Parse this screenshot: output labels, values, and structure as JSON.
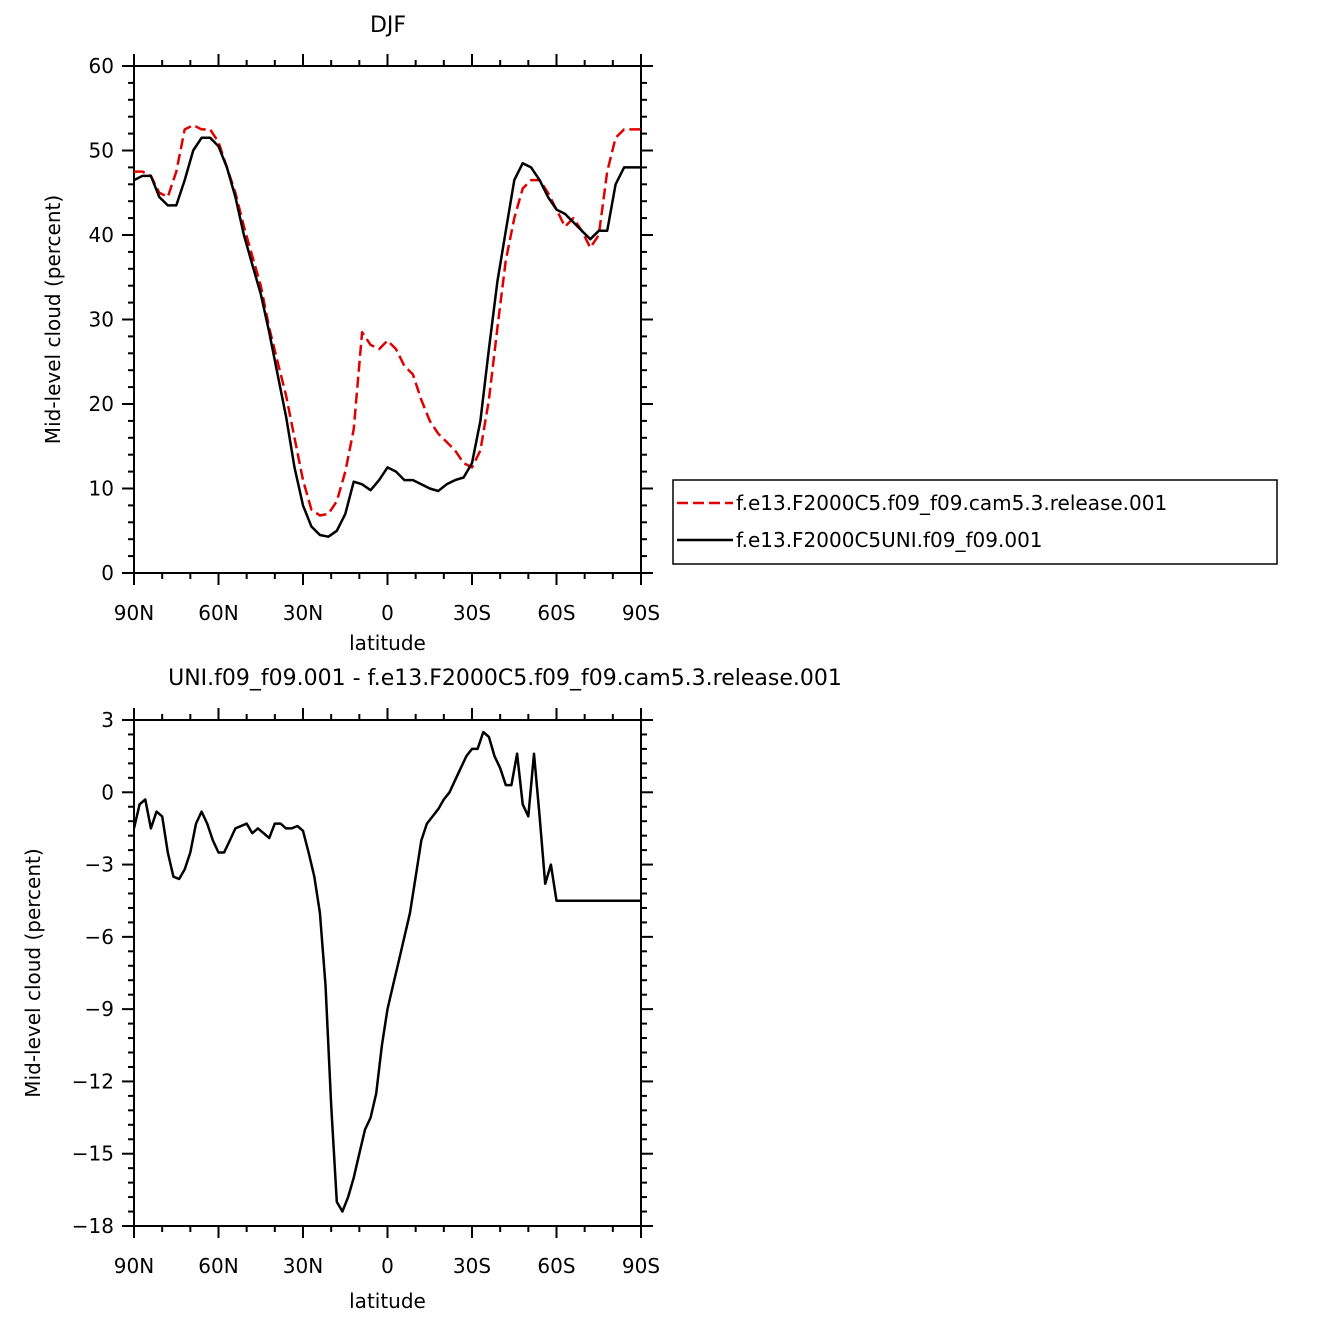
{
  "chart_data": [
    {
      "type": "line",
      "title": "DJF",
      "xlabel": "latitude",
      "ylabel": "Mid-level cloud (percent)",
      "xlim": [
        90,
        -90
      ],
      "ylim": [
        0,
        60
      ],
      "xticks": [
        90,
        60,
        30,
        0,
        -30,
        -60,
        -90
      ],
      "xtick_labels": [
        "90N",
        "60N",
        "30N",
        "0",
        "30S",
        "60S",
        "90S"
      ],
      "yticks": [
        0,
        10,
        20,
        30,
        40,
        50,
        60
      ],
      "ytick_labels": [
        "0",
        "10",
        "20",
        "30",
        "40",
        "50",
        "60"
      ],
      "grid": false,
      "legend_position": "right",
      "series": [
        {
          "name": "f.e13.F2000C5.f09_f09.cam5.3.release.001",
          "color": "#e00000",
          "dash": "dashed",
          "x": [
            90,
            87,
            84,
            81,
            78,
            75,
            72,
            69,
            66,
            63,
            60,
            57,
            54,
            51,
            48,
            45,
            42,
            39,
            36,
            33,
            30,
            27,
            24,
            21,
            18,
            15,
            12,
            9,
            6,
            3,
            0,
            -3,
            -6,
            -9,
            -12,
            -15,
            -18,
            -21,
            -24,
            -27,
            -30,
            -33,
            -36,
            -39,
            -42,
            -45,
            -48,
            -51,
            -54,
            -57,
            -60,
            -63,
            -66,
            -69,
            -72,
            -75,
            -78,
            -81,
            -84,
            -87,
            -90
          ],
          "y": [
            47.5,
            47.5,
            47,
            45,
            44.5,
            47.5,
            52.5,
            53,
            52.5,
            52.5,
            51,
            48,
            45,
            41,
            37.5,
            34,
            29,
            25,
            21,
            16,
            11,
            7.5,
            6.8,
            7,
            8.5,
            12,
            17,
            28.5,
            27,
            26.5,
            27.5,
            26.5,
            24.5,
            23.5,
            20.5,
            18,
            16.5,
            15.5,
            14.5,
            13,
            12.5,
            14.5,
            20.5,
            29,
            37,
            42,
            45.5,
            46.5,
            46.5,
            45,
            43,
            41,
            42,
            40.5,
            38.5,
            40,
            47.5,
            51.5,
            52.5,
            52.5,
            52.5
          ]
        },
        {
          "name": "f.e13.F2000C5UNI.f09_f09.001",
          "color": "#000000",
          "dash": "solid",
          "x": [
            90,
            87,
            84,
            81,
            78,
            75,
            72,
            69,
            66,
            63,
            60,
            57,
            54,
            51,
            48,
            45,
            42,
            39,
            36,
            33,
            30,
            27,
            24,
            21,
            18,
            15,
            12,
            9,
            6,
            3,
            0,
            -3,
            -6,
            -9,
            -12,
            -15,
            -18,
            -21,
            -24,
            -27,
            -30,
            -33,
            -36,
            -39,
            -42,
            -45,
            -48,
            -51,
            -54,
            -57,
            -60,
            -63,
            -66,
            -69,
            -72,
            -75,
            -78,
            -81,
            -84,
            -87,
            -90
          ],
          "y": [
            46.5,
            47,
            47,
            44.5,
            43.5,
            43.5,
            46.5,
            50,
            51.5,
            51.5,
            50.5,
            48,
            44.5,
            40,
            36.5,
            33,
            28.5,
            23.5,
            18.5,
            12.5,
            8,
            5.5,
            4.5,
            4.3,
            5,
            7,
            10.8,
            10.5,
            9.8,
            11,
            12.5,
            12,
            11,
            11,
            10.5,
            10,
            9.7,
            10.5,
            11,
            11.3,
            13,
            18,
            26.5,
            34.5,
            40.5,
            46.5,
            48.5,
            48,
            46.5,
            44.5,
            43,
            42.5,
            41.5,
            40.5,
            39.5,
            40.5,
            40.5,
            46,
            48,
            48,
            48
          ]
        }
      ]
    },
    {
      "type": "line",
      "title": "UNI.f09_f09.001 - f.e13.F2000C5.f09_f09.cam5.3.release.001",
      "xlabel": "latitude",
      "ylabel": "Mid-level cloud (percent)",
      "xlim": [
        90,
        -90
      ],
      "ylim": [
        -18,
        3
      ],
      "xticks": [
        90,
        60,
        30,
        0,
        -30,
        -60,
        -90
      ],
      "xtick_labels": [
        "90N",
        "60N",
        "30N",
        "0",
        "30S",
        "60S",
        "90S"
      ],
      "yticks": [
        3,
        0,
        -3,
        -6,
        -9,
        -12,
        -15,
        -18
      ],
      "ytick_labels": [
        "3",
        "0",
        "−3",
        "−6",
        "−9",
        "−12",
        "−15",
        "−18"
      ],
      "grid": false,
      "series": [
        {
          "color": "#000000",
          "dash": "solid",
          "x": [
            90,
            88,
            86,
            84,
            82,
            80,
            78,
            76,
            74,
            72,
            70,
            68,
            66,
            64,
            62,
            60,
            58,
            56,
            54,
            52,
            50,
            48,
            46,
            44,
            42,
            40,
            38,
            36,
            34,
            32,
            30,
            28,
            26,
            24,
            22,
            20,
            18,
            16,
            14,
            12,
            10,
            8,
            6,
            4,
            2,
            0,
            -2,
            -4,
            -6,
            -8,
            -10,
            -12,
            -14,
            -16,
            -18,
            -20,
            -22,
            -24,
            -26,
            -28,
            -30,
            -32,
            -34,
            -36,
            -38,
            -40,
            -42,
            -44,
            -46,
            -48,
            -50,
            -52,
            -54,
            -56,
            -58,
            -60,
            -62,
            -64,
            -66,
            -68,
            -70,
            -72,
            -74,
            -76,
            -78,
            -80,
            -82,
            -84,
            -86,
            -88,
            -90
          ],
          "y": [
            -1.5,
            -0.5,
            -0.3,
            -1.5,
            -0.8,
            -1,
            -2.5,
            -3.5,
            -3.6,
            -3.2,
            -2.5,
            -1.3,
            -0.8,
            -1.3,
            -2,
            -2.5,
            -2.5,
            -2,
            -1.5,
            -1.4,
            -1.3,
            -1.7,
            -1.5,
            -1.7,
            -1.9,
            -1.3,
            -1.3,
            -1.5,
            -1.5,
            -1.4,
            -1.6,
            -2.5,
            -3.5,
            -5,
            -8,
            -13,
            -17,
            -17.4,
            -16.8,
            -16,
            -15,
            -14,
            -13.5,
            -12.5,
            -10.5,
            -9,
            -8,
            -7,
            -6,
            -5,
            -3.5,
            -2,
            -1.3,
            -1,
            -0.7,
            -0.3,
            0,
            0.5,
            1,
            1.5,
            1.8,
            1.8,
            2.5,
            2.3,
            1.5,
            1,
            0.3,
            0.3,
            1.6,
            -0.5,
            -1,
            1.6,
            -1,
            -3.8,
            -3,
            -4.5,
            -4.5,
            -4.5,
            -4.5,
            -4.5,
            -4.5,
            -4.5,
            -4.5,
            -4.5,
            -4.5,
            -4.5,
            -4.5,
            -4.5,
            -4.5,
            -4.5,
            -4.5
          ]
        }
      ]
    }
  ]
}
